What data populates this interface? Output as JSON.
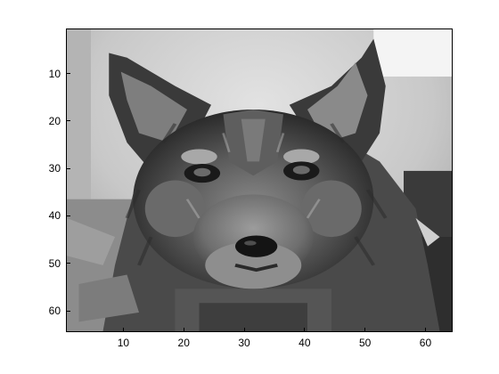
{
  "figure": {
    "image_subject": "grayscale pixelated dog face",
    "colormap": "gray",
    "image_resolution": [
      64,
      64
    ],
    "colors": {
      "background": "#ffffff",
      "axes_border": "#000000"
    }
  },
  "axes": {
    "x_ticks": [
      "10",
      "20",
      "30",
      "40",
      "50",
      "60"
    ],
    "y_ticks": [
      "10",
      "20",
      "30",
      "40",
      "50",
      "60"
    ],
    "xlim": [
      0.5,
      64.5
    ],
    "ylim": [
      0.5,
      64.5
    ],
    "y_reversed": true
  }
}
